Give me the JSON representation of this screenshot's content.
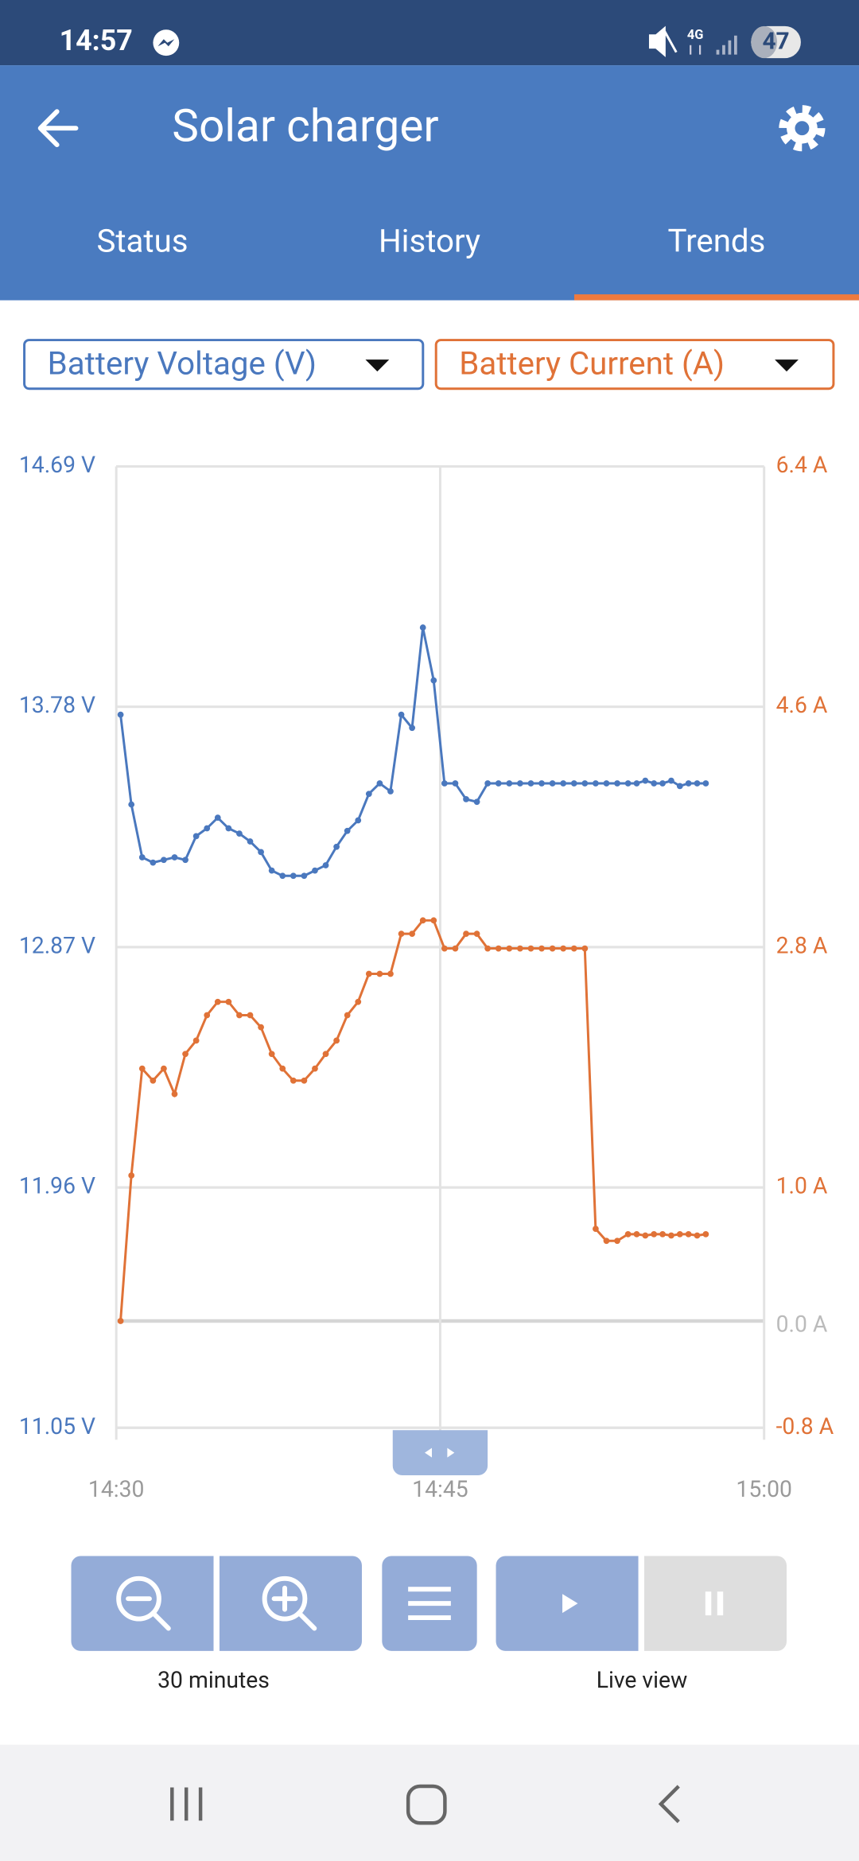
{
  "status_bar": {
    "time": "14:57",
    "network": "4G",
    "battery": "47"
  },
  "app_bar": {
    "title": "Solar charger"
  },
  "tabs": [
    "Status",
    "History",
    "Trends"
  ],
  "controls": {
    "zoom_label": "30 minutes",
    "live_label": "Live view"
  },
  "chart_data": {
    "type": "line",
    "x": [
      30.2,
      30.7,
      31.2,
      31.7,
      32.2,
      32.7,
      33.2,
      33.7,
      34.2,
      34.7,
      35.2,
      35.7,
      36.2,
      36.7,
      37.2,
      37.7,
      38.2,
      38.7,
      39.2,
      39.7,
      40.2,
      40.7,
      41.2,
      41.7,
      42.2,
      42.7,
      43.2,
      43.7,
      44.2,
      44.7,
      45.2,
      45.7,
      46.2,
      46.7,
      47.2,
      47.7,
      48.2,
      48.7,
      49.2,
      49.7,
      50.2,
      50.7,
      51.2,
      51.7,
      52.2,
      52.7,
      53.2,
      53.7,
      54.1,
      54.5,
      54.9,
      55.3,
      55.7,
      56.1,
      56.5,
      56.9,
      57.3
    ],
    "xlim": [
      30,
      60
    ],
    "xticks": [
      {
        "value": 30,
        "label": "14:30"
      },
      {
        "value": 45,
        "label": "14:45"
      },
      {
        "value": 60,
        "label": "15:00"
      }
    ],
    "ylim": [
      11.05,
      14.69
    ],
    "yticks": [
      {
        "value": 11.05,
        "label": "11.05 V"
      },
      {
        "value": 11.96,
        "label": "11.96 V"
      },
      {
        "value": 12.87,
        "label": "12.87 V"
      },
      {
        "value": 13.78,
        "label": "13.78 V"
      },
      {
        "value": 14.69,
        "label": "14.69 V"
      }
    ],
    "y2lim": [
      -0.8,
      6.4
    ],
    "y2ticks": [
      {
        "value": -0.8,
        "label": "-0.8 A"
      },
      {
        "value": 0.0,
        "label": "0.0 A"
      },
      {
        "value": 1.0,
        "label": "1.0 A"
      },
      {
        "value": 2.8,
        "label": "2.8 A"
      },
      {
        "value": 4.6,
        "label": "4.6 A"
      },
      {
        "value": 6.4,
        "label": "6.4 A"
      }
    ],
    "grid": true,
    "series": [
      {
        "name": "Battery Voltage (V)",
        "color": "#4a78be",
        "axis": "y",
        "values": [
          13.75,
          13.41,
          13.21,
          13.19,
          13.2,
          13.21,
          13.2,
          13.29,
          13.32,
          13.36,
          13.32,
          13.3,
          13.27,
          13.23,
          13.16,
          13.14,
          13.14,
          13.14,
          13.16,
          13.18,
          13.25,
          13.31,
          13.35,
          13.45,
          13.49,
          13.46,
          13.75,
          13.7,
          14.08,
          13.88,
          13.49,
          13.49,
          13.43,
          13.42,
          13.49,
          13.49,
          13.49,
          13.49,
          13.49,
          13.49,
          13.49,
          13.49,
          13.49,
          13.49,
          13.49,
          13.49,
          13.49,
          13.49,
          13.49,
          13.5,
          13.49,
          13.49,
          13.5,
          13.48,
          13.49,
          13.49,
          13.49
        ]
      },
      {
        "name": "Battery Current (A)",
        "color": "#e07237",
        "axis": "y2",
        "values": [
          0.0,
          1.09,
          1.89,
          1.8,
          1.89,
          1.7,
          2.0,
          2.1,
          2.29,
          2.39,
          2.39,
          2.29,
          2.29,
          2.2,
          2.0,
          1.89,
          1.8,
          1.8,
          1.89,
          2.0,
          2.1,
          2.29,
          2.39,
          2.6,
          2.6,
          2.6,
          2.9,
          2.9,
          3.0,
          3.0,
          2.79,
          2.79,
          2.9,
          2.9,
          2.79,
          2.79,
          2.79,
          2.79,
          2.79,
          2.79,
          2.79,
          2.79,
          2.79,
          2.79,
          0.69,
          0.6,
          0.6,
          0.65,
          0.65,
          0.64,
          0.65,
          0.65,
          0.64,
          0.65,
          0.65,
          0.64,
          0.65
        ]
      }
    ]
  }
}
